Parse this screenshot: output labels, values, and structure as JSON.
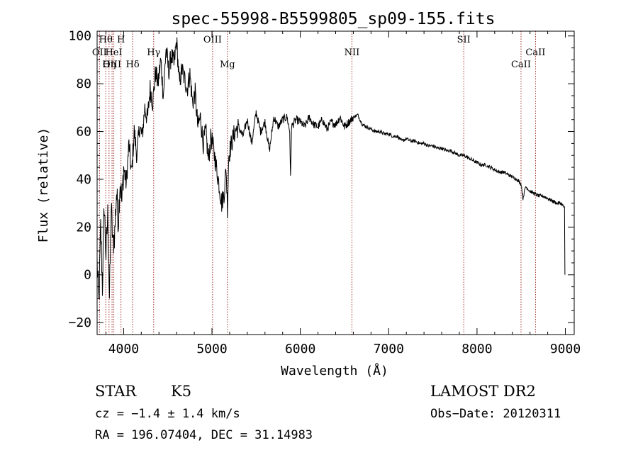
{
  "chart_data": {
    "type": "line",
    "title": "spec-55998-B5599805_sp09-155.fits",
    "xlabel": "Wavelength (Å)",
    "ylabel": "Flux (relative)",
    "xlim": [
      3700,
      9100
    ],
    "ylim": [
      -25,
      102
    ],
    "x_ticks": [
      4000,
      5000,
      6000,
      7000,
      8000,
      9000
    ],
    "y_ticks": [
      -20,
      0,
      20,
      40,
      60,
      80,
      100
    ],
    "grid": false,
    "line_color": "#000000",
    "marker_color": "#a0342c",
    "spectral_lines": [
      {
        "label": "Hθ",
        "x": 3798,
        "row": 0
      },
      {
        "label": "H",
        "x": 3970,
        "row": 0
      },
      {
        "label": "OII",
        "x": 3727,
        "row": 1
      },
      {
        "label": "HeI",
        "x": 3889,
        "row": 1
      },
      {
        "label": "OIII",
        "x": 3869,
        "row": 2
      },
      {
        "label": "Hη",
        "x": 3835,
        "row": 2
      },
      {
        "label": "Hδ",
        "x": 4102,
        "row": 2
      },
      {
        "label": "Hγ",
        "x": 4340,
        "row": 1
      },
      {
        "label": "OIII",
        "x": 5007,
        "row": 0
      },
      {
        "label": "Mg",
        "x": 5175,
        "row": 2
      },
      {
        "label": "NII",
        "x": 6584,
        "row": 1
      },
      {
        "label": "SII",
        "x": 7850,
        "row": 0
      },
      {
        "label": "CaII",
        "x": 8498,
        "row": 2
      },
      {
        "label": "CaII",
        "x": 8662,
        "row": 1
      }
    ],
    "series": [
      {
        "x": [
          3700,
          3720,
          3740,
          3760,
          3780,
          3800,
          3820,
          3840,
          3860,
          3880,
          3900,
          3920,
          3940,
          3960,
          3980,
          4000,
          4030,
          4060,
          4090,
          4120,
          4150,
          4180,
          4210,
          4240,
          4270,
          4300,
          4330,
          4360,
          4390,
          4420,
          4450,
          4480,
          4510,
          4540,
          4570,
          4600,
          4630,
          4660,
          4690,
          4720,
          4750,
          4780,
          4810,
          4840,
          4870,
          4900,
          4930,
          4960,
          4990,
          5020,
          5050,
          5080,
          5110,
          5140,
          5160,
          5175,
          5190,
          5220,
          5260,
          5300,
          5350,
          5400,
          5450,
          5500,
          5550,
          5600,
          5650,
          5700,
          5750,
          5800,
          5850,
          5880,
          5890,
          5900,
          5950,
          6000,
          6050,
          6100,
          6150,
          6200,
          6250,
          6300,
          6350,
          6400,
          6450,
          6500,
          6550,
          6600,
          6650,
          6700,
          6750,
          6800,
          6850,
          6900,
          6950,
          7000,
          7050,
          7100,
          7150,
          7200,
          7250,
          7300,
          7350,
          7400,
          7450,
          7500,
          7550,
          7600,
          7650,
          7700,
          7750,
          7800,
          7850,
          7900,
          7950,
          8000,
          8050,
          8100,
          8150,
          8200,
          8250,
          8300,
          8350,
          8400,
          8450,
          8500,
          8520,
          8550,
          8600,
          8650,
          8700,
          8750,
          8800,
          8850,
          8900,
          8950,
          8990,
          8995
        ],
        "y": [
          5,
          -12,
          20,
          -5,
          30,
          8,
          25,
          -10,
          28,
          12,
          18,
          35,
          22,
          40,
          30,
          45,
          38,
          55,
          42,
          60,
          50,
          62,
          58,
          70,
          65,
          78,
          72,
          85,
          80,
          90,
          75,
          95,
          85,
          92,
          88,
          98,
          80,
          86,
          82,
          78,
          84,
          72,
          76,
          62,
          66,
          55,
          60,
          48,
          58,
          52,
          45,
          38,
          30,
          35,
          45,
          28,
          50,
          55,
          60,
          62,
          58,
          65,
          55,
          68,
          60,
          64,
          52,
          66,
          62,
          65,
          66,
          60,
          40,
          62,
          65,
          64,
          62,
          66,
          63,
          62,
          65,
          61,
          64,
          63,
          66,
          62,
          64,
          66,
          67,
          63,
          62,
          61,
          60,
          60,
          59,
          59,
          58,
          58,
          56,
          57,
          56,
          56,
          55,
          55,
          54,
          54,
          53,
          53,
          52,
          52,
          51,
          50,
          50,
          49,
          48,
          47,
          46,
          46,
          45,
          44,
          43,
          43,
          42,
          41,
          40,
          38,
          32,
          37,
          35,
          34,
          33,
          33,
          32,
          31,
          30,
          30,
          28,
          0
        ]
      }
    ]
  },
  "footer": {
    "object_class": "STAR",
    "subclass": "K5",
    "survey": "LAMOST DR2",
    "redshift": "cz = −1.4 ± 1.4 km/s",
    "obs_date": "Obs−Date: 20120311",
    "coords": "RA = 196.07404, DEC =  31.14983"
  }
}
